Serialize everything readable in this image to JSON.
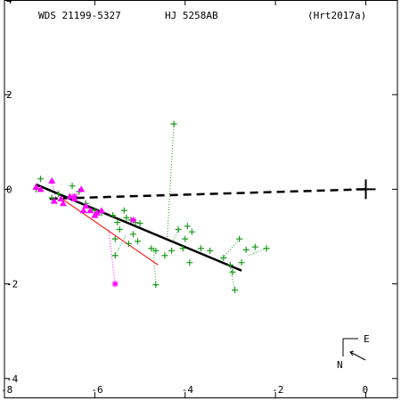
{
  "header": {
    "wds": "WDS 21199-5327",
    "name": "HJ 5258AB",
    "ref": "(Hrt2017a)"
  },
  "orientation": {
    "east_label": "E",
    "north_label": "N"
  },
  "chart_data": {
    "type": "scatter",
    "xlim": [
      -8,
      0.7
    ],
    "ylim": [
      -4.4,
      4
    ],
    "x_ticks": [
      -8,
      -6,
      -4,
      -2,
      0
    ],
    "y_ticks": [
      4,
      2,
      0,
      -2,
      -4
    ],
    "tick_labels_x": [
      "-8",
      "-6",
      "-4",
      "-2",
      "0"
    ],
    "tick_labels_y": [
      "4",
      "2",
      "0",
      "-2",
      "-4"
    ],
    "grid": false,
    "primary": [
      0,
      0
    ],
    "fit_line": [
      [
        -7.3,
        0.1
      ],
      [
        -2.75,
        -1.72
      ]
    ],
    "dashed_line": [
      [
        -7.0,
        -0.2
      ],
      [
        0.0,
        0.0
      ]
    ],
    "red_line": [
      [
        -6.7,
        -0.22
      ],
      [
        -4.6,
        -1.6
      ]
    ],
    "green_points": [
      [
        -7.2,
        0.22
      ],
      [
        -7.3,
        0.0
      ],
      [
        -6.95,
        -0.18
      ],
      [
        -6.8,
        -0.1
      ],
      [
        -6.5,
        0.07
      ],
      [
        -6.35,
        -0.05
      ],
      [
        -6.2,
        -0.3
      ],
      [
        -6.0,
        -0.45
      ],
      [
        -5.85,
        -0.5
      ],
      [
        -5.6,
        -0.55
      ],
      [
        -5.5,
        -0.7
      ],
      [
        -5.35,
        -0.45
      ],
      [
        -5.3,
        -0.6
      ],
      [
        -5.2,
        -0.65
      ],
      [
        -5.1,
        -0.7
      ],
      [
        -5.0,
        -0.72
      ],
      [
        -5.15,
        -0.95
      ],
      [
        -5.45,
        -0.85
      ],
      [
        -5.55,
        -1.05
      ],
      [
        -5.25,
        -1.15
      ],
      [
        -5.05,
        -1.1
      ],
      [
        -4.75,
        -1.25
      ],
      [
        -4.65,
        -1.3
      ],
      [
        -4.45,
        -1.4
      ],
      [
        -4.3,
        -1.3
      ],
      [
        -4.25,
        1.38
      ],
      [
        -4.15,
        -0.85
      ],
      [
        -4.0,
        -1.05
      ],
      [
        -3.95,
        -0.78
      ],
      [
        -3.85,
        -0.9
      ],
      [
        -3.65,
        -1.25
      ],
      [
        -3.45,
        -1.3
      ],
      [
        -3.15,
        -1.45
      ],
      [
        -3.0,
        -1.6
      ],
      [
        -2.95,
        -1.75
      ],
      [
        -2.9,
        -2.13
      ],
      [
        -2.8,
        -1.05
      ],
      [
        -2.75,
        -1.55
      ],
      [
        -2.65,
        -1.28
      ],
      [
        -2.45,
        -1.22
      ],
      [
        -2.2,
        -1.25
      ],
      [
        -4.65,
        -2.02
      ],
      [
        -5.55,
        -1.4
      ],
      [
        -3.9,
        -1.55
      ],
      [
        -4.05,
        -1.25
      ]
    ],
    "green_residuals": [
      [
        [
          -4.25,
          1.38
        ],
        [
          -4.4,
          -1.08
        ]
      ],
      [
        [
          -2.9,
          -2.13
        ],
        [
          -3.0,
          -1.64
        ]
      ],
      [
        [
          -4.65,
          -2.02
        ],
        [
          -4.7,
          -1.26
        ]
      ],
      [
        [
          -2.8,
          -1.05
        ],
        [
          -3.2,
          -1.5
        ]
      ],
      [
        [
          -2.2,
          -1.25
        ],
        [
          -2.6,
          -1.4
        ]
      ],
      [
        [
          -4.15,
          -0.85
        ],
        [
          -4.3,
          -1.15
        ]
      ],
      [
        [
          -5.55,
          -1.4
        ],
        [
          -5.3,
          -0.95
        ]
      ]
    ],
    "magenta_triangles": [
      [
        -7.3,
        0.05
      ],
      [
        -7.2,
        0.0
      ],
      [
        -6.95,
        0.18
      ],
      [
        -6.9,
        -0.25
      ],
      [
        -6.75,
        -0.2
      ],
      [
        -6.55,
        -0.15
      ],
      [
        -6.45,
        -0.2
      ],
      [
        -6.3,
        0.0
      ],
      [
        -6.2,
        -0.35
      ],
      [
        -6.1,
        -0.45
      ],
      [
        -5.95,
        -0.5
      ],
      [
        -5.85,
        -0.45
      ],
      [
        -6.7,
        -0.3
      ],
      [
        -6.25,
        -0.45
      ],
      [
        -6.0,
        -0.55
      ]
    ],
    "magenta_stars": [
      [
        -5.55,
        -2.0
      ],
      [
        -5.15,
        -0.65
      ],
      [
        -6.45,
        -0.15
      ]
    ],
    "magenta_residuals": [
      [
        [
          -5.55,
          -2.0
        ],
        [
          -5.7,
          -0.82
        ]
      ],
      [
        [
          -6.95,
          0.18
        ],
        [
          -6.85,
          -0.22
        ]
      ],
      [
        [
          -6.3,
          0.0
        ],
        [
          -6.45,
          -0.28
        ]
      ]
    ],
    "colors": {
      "green": "#1a9a1a",
      "magenta": "#ff00ff",
      "red": "#ff0000",
      "black": "#000000"
    }
  }
}
